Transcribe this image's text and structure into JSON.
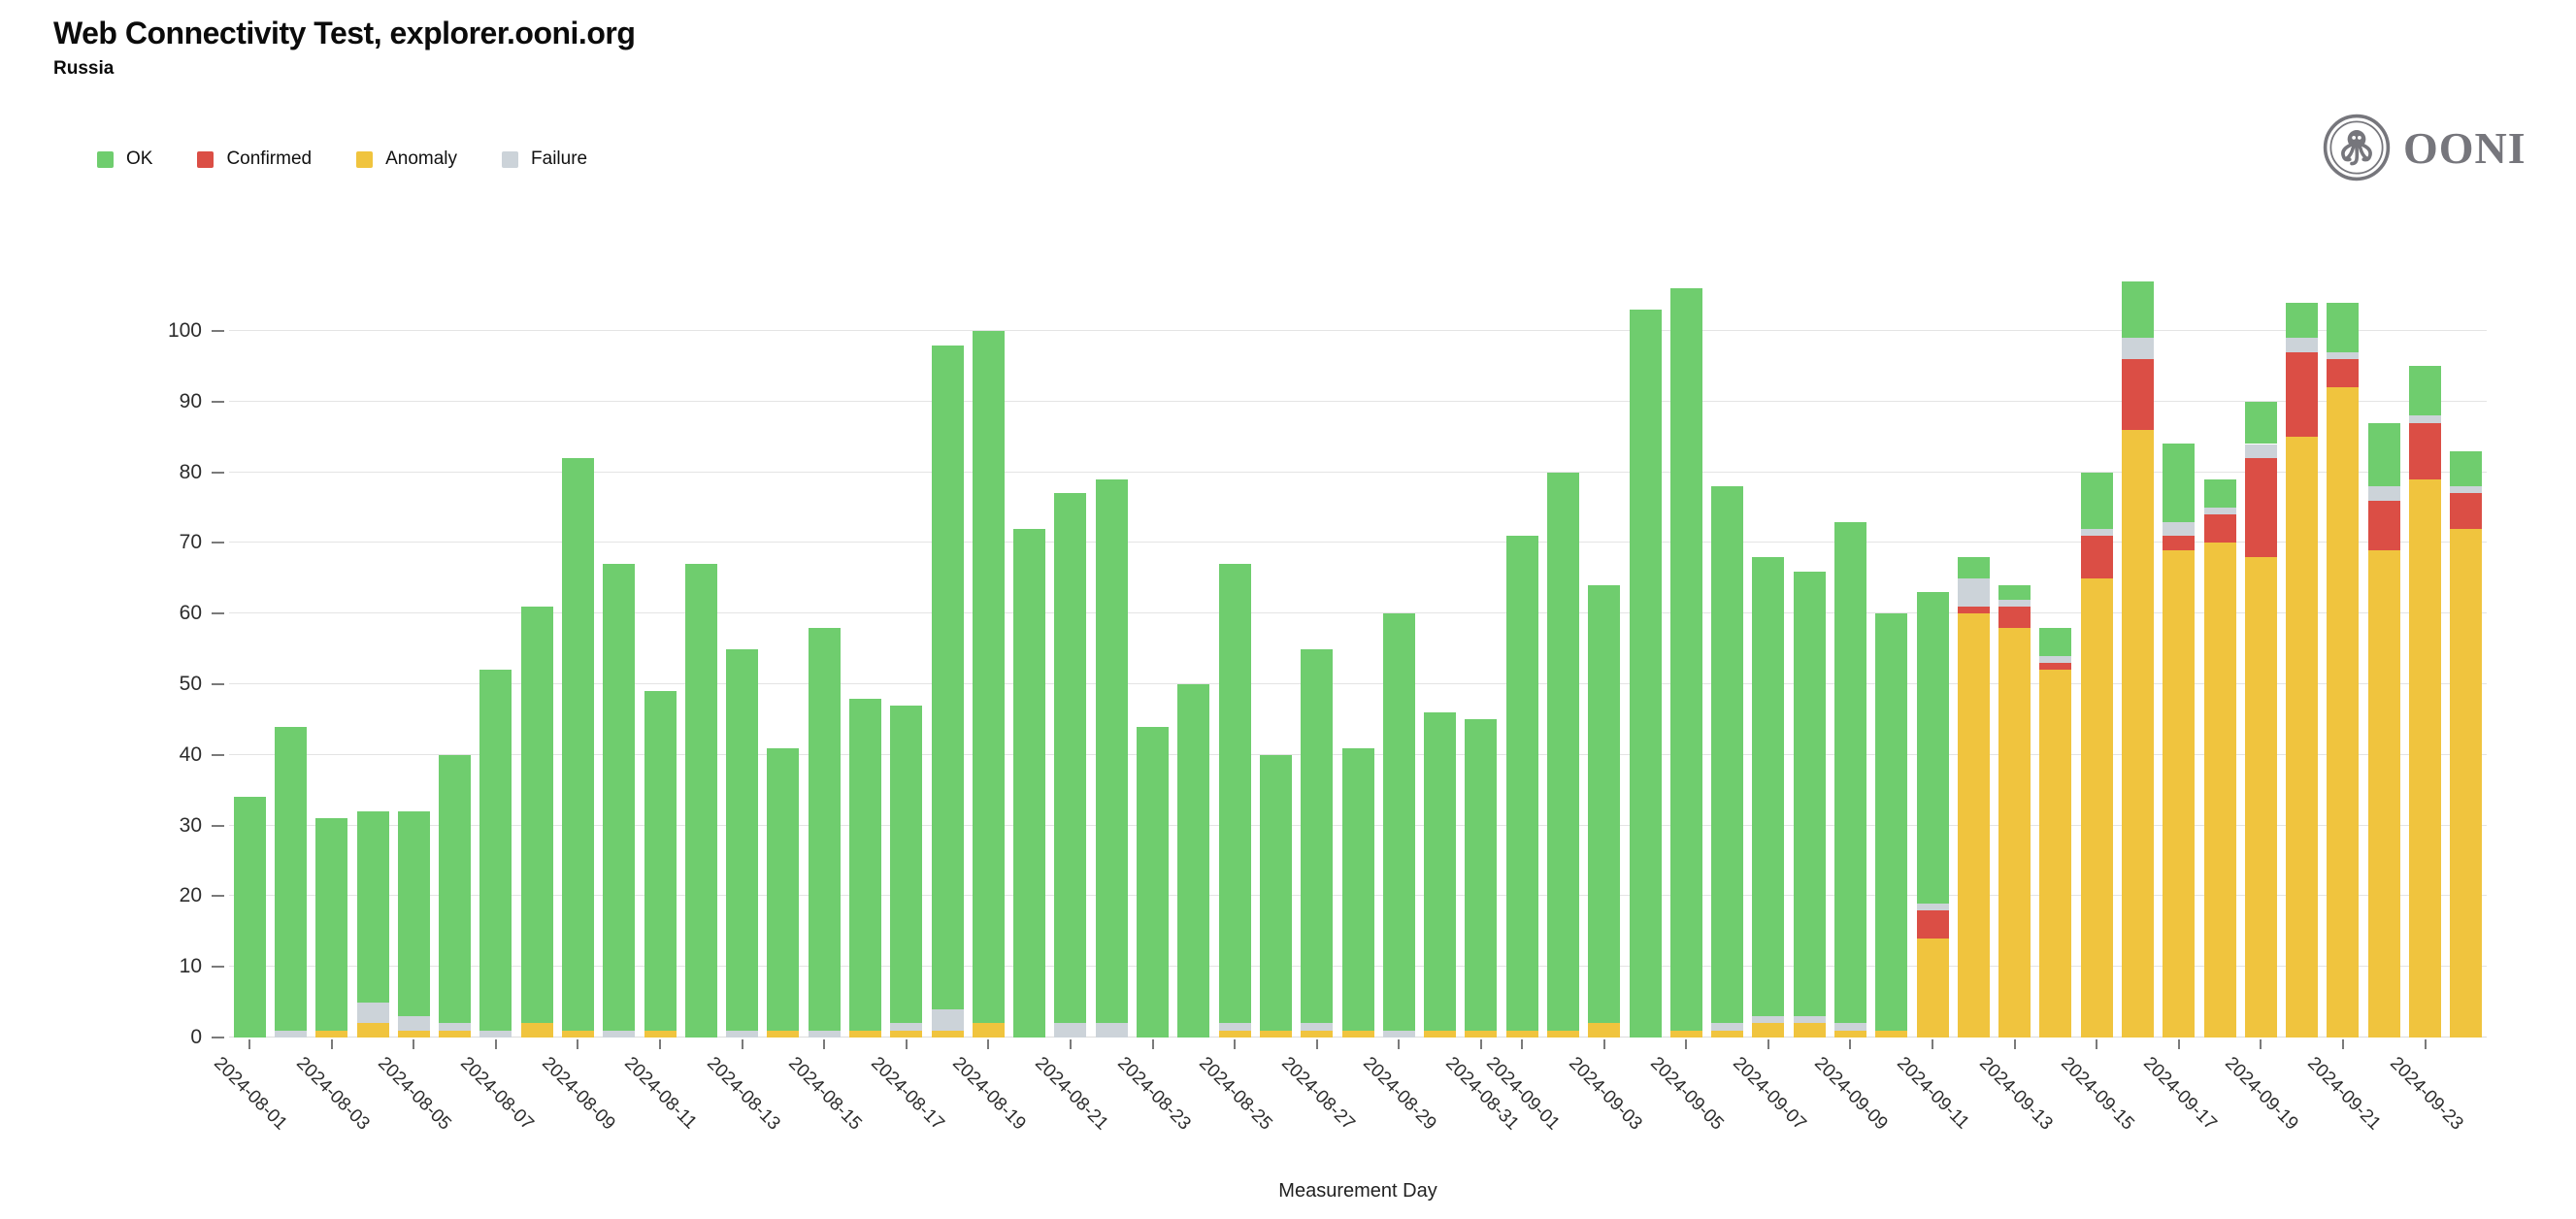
{
  "header": {
    "title": "Web Connectivity Test, explorer.ooni.org",
    "subtitle": "Russia"
  },
  "logo": {
    "text": "OONI"
  },
  "legend": [
    {
      "label": "OK",
      "color": "#6fcd6e"
    },
    {
      "label": "Confirmed",
      "color": "#db4e45"
    },
    {
      "label": "Anomaly",
      "color": "#f0c43e"
    },
    {
      "label": "Failure",
      "color": "#ccd3d9"
    }
  ],
  "chart_data": {
    "type": "bar",
    "stacked": true,
    "title": "Web Connectivity Test, explorer.ooni.org",
    "subtitle": "Russia",
    "xlabel": "Measurement Day",
    "ylabel": "",
    "ylim": [
      0,
      100
    ],
    "yticks": [
      0,
      10,
      20,
      30,
      40,
      50,
      60,
      70,
      80,
      90,
      100
    ],
    "grid": true,
    "legend_position": "top-left",
    "x_labels_every_odd_day": true,
    "categories": [
      "2024-08-01",
      "2024-08-02",
      "2024-08-03",
      "2024-08-04",
      "2024-08-05",
      "2024-08-06",
      "2024-08-07",
      "2024-08-08",
      "2024-08-09",
      "2024-08-10",
      "2024-08-11",
      "2024-08-12",
      "2024-08-13",
      "2024-08-14",
      "2024-08-15",
      "2024-08-16",
      "2024-08-17",
      "2024-08-18",
      "2024-08-19",
      "2024-08-20",
      "2024-08-21",
      "2024-08-22",
      "2024-08-23",
      "2024-08-24",
      "2024-08-25",
      "2024-08-26",
      "2024-08-27",
      "2024-08-28",
      "2024-08-29",
      "2024-08-30",
      "2024-08-31",
      "2024-09-01",
      "2024-09-02",
      "2024-09-03",
      "2024-09-04",
      "2024-09-05",
      "2024-09-06",
      "2024-09-07",
      "2024-09-08",
      "2024-09-09",
      "2024-09-10",
      "2024-09-11",
      "2024-09-12",
      "2024-09-13",
      "2024-09-14",
      "2024-09-15",
      "2024-09-16",
      "2024-09-17",
      "2024-09-18",
      "2024-09-19",
      "2024-09-20",
      "2024-09-21",
      "2024-09-22",
      "2024-09-23",
      "2024-09-24"
    ],
    "series": [
      {
        "name": "Anomaly",
        "color": "#f0c43e",
        "values": [
          0,
          0,
          1,
          2,
          1,
          1,
          0,
          2,
          1,
          0,
          1,
          0,
          0,
          1,
          0,
          1,
          1,
          1,
          2,
          0,
          0,
          0,
          0,
          0,
          1,
          1,
          1,
          1,
          0,
          1,
          1,
          1,
          1,
          2,
          0,
          1,
          1,
          2,
          2,
          1,
          1,
          14,
          60,
          58,
          52,
          65,
          86,
          69,
          70,
          68,
          85,
          92,
          69,
          79,
          72
        ]
      },
      {
        "name": "Confirmed",
        "color": "#db4e45",
        "values": [
          0,
          0,
          0,
          0,
          0,
          0,
          0,
          0,
          0,
          0,
          0,
          0,
          0,
          0,
          0,
          0,
          0,
          0,
          0,
          0,
          0,
          0,
          0,
          0,
          0,
          0,
          0,
          0,
          0,
          0,
          0,
          0,
          0,
          0,
          0,
          0,
          0,
          0,
          0,
          0,
          0,
          4,
          1,
          3,
          1,
          6,
          10,
          2,
          4,
          14,
          12,
          4,
          7,
          8,
          5
        ]
      },
      {
        "name": "Failure",
        "color": "#ccd3d9",
        "values": [
          0,
          1,
          0,
          3,
          2,
          1,
          1,
          0,
          0,
          1,
          0,
          0,
          1,
          0,
          1,
          0,
          1,
          3,
          0,
          0,
          2,
          2,
          0,
          0,
          1,
          0,
          1,
          0,
          1,
          0,
          0,
          0,
          0,
          0,
          0,
          0,
          1,
          1,
          1,
          1,
          0,
          1,
          4,
          1,
          1,
          1,
          3,
          2,
          1,
          2,
          2,
          1,
          2,
          1,
          1
        ]
      },
      {
        "name": "OK",
        "color": "#6fcd6e",
        "values": [
          34,
          43,
          30,
          27,
          29,
          38,
          51,
          59,
          81,
          66,
          48,
          67,
          54,
          40,
          57,
          47,
          45,
          94,
          98,
          72,
          75,
          77,
          44,
          50,
          65,
          39,
          53,
          40,
          59,
          45,
          44,
          70,
          79,
          62,
          103,
          105,
          76,
          65,
          63,
          71,
          59,
          44,
          3,
          2,
          4,
          8,
          8,
          11,
          4,
          6,
          5,
          7,
          9,
          7,
          5
        ]
      }
    ],
    "totals": [
      34,
      44,
      31,
      32,
      32,
      40,
      52,
      61,
      82,
      67,
      49,
      67,
      55,
      41,
      58,
      48,
      47,
      98,
      100,
      72,
      77,
      79,
      44,
      50,
      67,
      40,
      55,
      41,
      60,
      46,
      45,
      71,
      80,
      64,
      103,
      106,
      78,
      68,
      66,
      73,
      60,
      63,
      68,
      64,
      58,
      80,
      107,
      84,
      79,
      90,
      104,
      104,
      87,
      95,
      83
    ]
  }
}
